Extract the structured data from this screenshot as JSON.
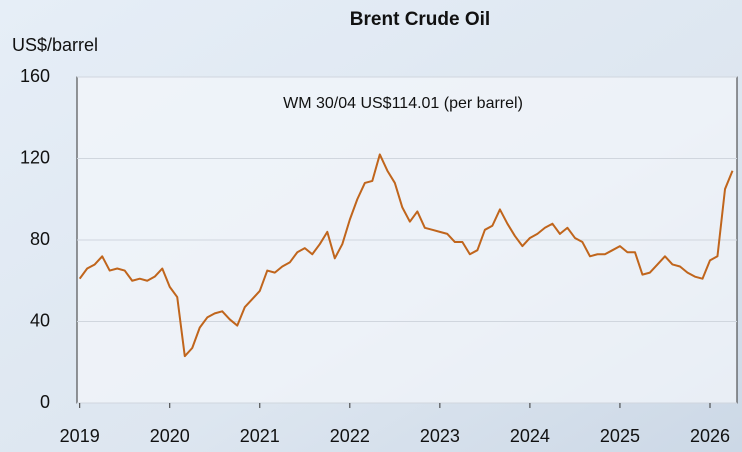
{
  "chart_data": {
    "type": "line",
    "title": "Brent Crude Oil",
    "y_label": "US$/barrel",
    "annotation": "WM 30/04 US$114.01 (per barrel)",
    "color": "#c0651c",
    "grid": true,
    "xlim": [
      2018.97,
      2026.3
    ],
    "xticks": [
      2019,
      2020,
      2021,
      2022,
      2023,
      2024,
      2025,
      2026
    ],
    "ylim": [
      0,
      160
    ],
    "yticks": [
      0,
      40,
      80,
      120,
      160
    ],
    "x": [
      2019,
      2019.083,
      2019.167,
      2019.25,
      2019.333,
      2019.417,
      2019.5,
      2019.583,
      2019.667,
      2019.75,
      2019.833,
      2019.917,
      2020,
      2020.083,
      2020.167,
      2020.25,
      2020.333,
      2020.417,
      2020.5,
      2020.583,
      2020.667,
      2020.75,
      2020.833,
      2020.917,
      2021,
      2021.083,
      2021.167,
      2021.25,
      2021.333,
      2021.417,
      2021.5,
      2021.583,
      2021.667,
      2021.75,
      2021.833,
      2021.917,
      2022,
      2022.083,
      2022.167,
      2022.25,
      2022.333,
      2022.417,
      2022.5,
      2022.583,
      2022.667,
      2022.75,
      2022.833,
      2022.917,
      2023,
      2023.083,
      2023.167,
      2023.25,
      2023.333,
      2023.417,
      2023.5,
      2023.583,
      2023.667,
      2023.75,
      2023.833,
      2023.917,
      2024,
      2024.083,
      2024.167,
      2024.25,
      2024.333,
      2024.417,
      2024.5,
      2024.583,
      2024.667,
      2024.75,
      2024.833,
      2024.917,
      2025,
      2025.083,
      2025.167,
      2025.25,
      2025.333,
      2025.417,
      2025.5,
      2025.583,
      2025.667,
      2025.75,
      2025.833,
      2025.917,
      2026,
      2026.083,
      2026.167,
      2026.25
    ],
    "values": [
      61,
      66,
      68,
      72,
      65,
      66,
      65,
      60,
      61,
      60,
      62,
      66,
      57,
      52,
      23,
      27,
      37,
      42,
      44,
      45,
      41,
      38,
      47,
      51,
      55,
      65,
      64,
      67,
      69,
      74,
      76,
      73,
      78,
      84,
      71,
      78,
      90,
      100,
      108,
      109,
      122,
      114,
      108,
      96,
      89,
      94,
      86,
      85,
      84,
      83,
      79,
      79,
      73,
      75,
      85,
      87,
      95,
      88,
      82,
      77,
      81,
      83,
      86,
      88,
      83,
      86,
      81,
      79,
      72,
      73,
      73,
      75,
      77,
      74,
      74,
      63,
      64,
      68,
      72,
      68,
      67,
      64,
      62,
      61,
      70,
      72,
      105,
      114
    ]
  }
}
